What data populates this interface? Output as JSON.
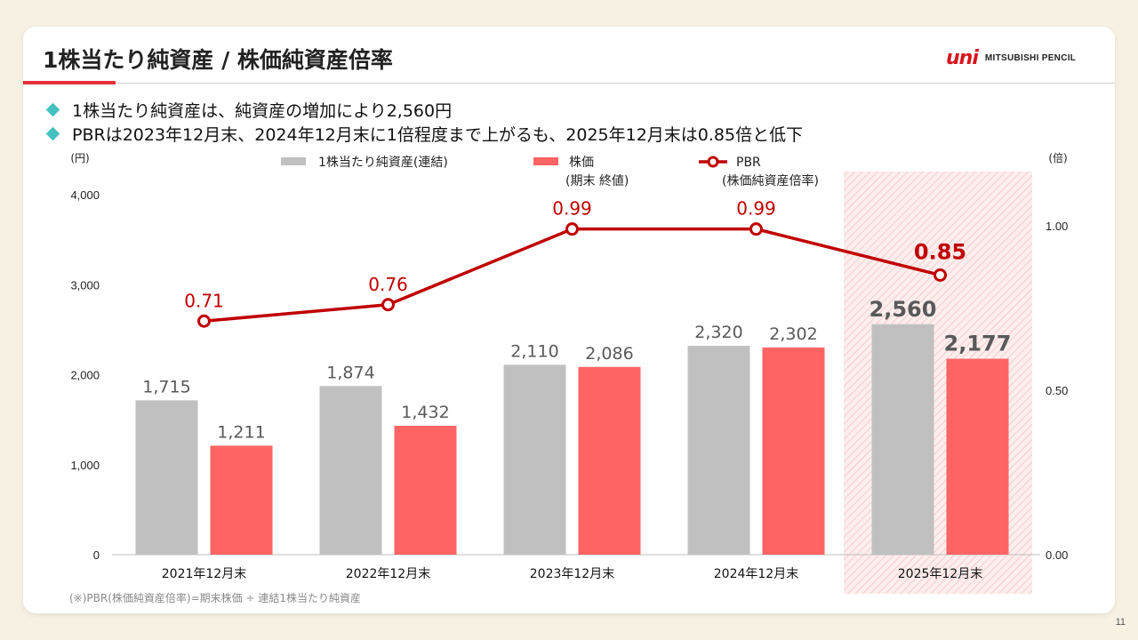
{
  "title": "1株当たり純資産 / 株価純資産倍率",
  "logo": {
    "mark": "uni",
    "text": "MITSUBISHI PENCIL"
  },
  "bullets": [
    "1株当たり純資産は、純資産の増加により2,560円",
    "PBRは2023年12月末、2024年12月末に1倍程度まで上がるも、2025年12月末は0.85倍と低下"
  ],
  "page_number": "11",
  "colors": {
    "bps": "#c0c0c0",
    "price": "#ff6464",
    "pbr": "#c00000",
    "accent": "#e8303a",
    "bullet": "#44c2c2"
  },
  "chart_data": {
    "type": "bar",
    "categories": [
      "2021年12月末",
      "2022年12月末",
      "2023年12月末",
      "2024年12月末",
      "2025年12月末"
    ],
    "series": [
      {
        "name": "1株当たり純資産(連結)",
        "type": "bar",
        "axis": "left",
        "values": [
          1715,
          1874,
          2110,
          2320,
          2560
        ],
        "labels": [
          "1,715",
          "1,874",
          "2,110",
          "2,320",
          "2,560"
        ]
      },
      {
        "name": "株価",
        "name_sub": "(期末 終値)",
        "type": "bar",
        "axis": "left",
        "values": [
          1211,
          1432,
          2086,
          2302,
          2177
        ],
        "labels": [
          "1,211",
          "1,432",
          "2,086",
          "2,302",
          "2,177"
        ]
      },
      {
        "name": "PBR",
        "name_sub": "(株価純資産倍率)",
        "type": "line",
        "axis": "right",
        "values": [
          0.71,
          0.76,
          0.99,
          0.99,
          0.85
        ],
        "labels": [
          "0.71",
          "0.76",
          "0.99",
          "0.99",
          "0.85"
        ]
      }
    ],
    "y_left": {
      "unit": "(円)",
      "range": [
        0,
        4000
      ],
      "ticks": [
        0,
        1000,
        2000,
        3000,
        4000
      ],
      "tick_labels": [
        "0",
        "1,000",
        "2,000",
        "3,000",
        "4,000"
      ]
    },
    "y_right": {
      "unit": "(倍)",
      "range": [
        0,
        1.0944
      ],
      "ticks": [
        0,
        0.5,
        1.0
      ],
      "tick_labels": [
        "0.00",
        "0.50",
        "1.00"
      ]
    },
    "highlight_category": "2025年12月末",
    "legend_position": "top",
    "footnote": "(※)PBR(株価純資産倍率)=期末株価 ÷ 連結1株当たり純資産"
  }
}
